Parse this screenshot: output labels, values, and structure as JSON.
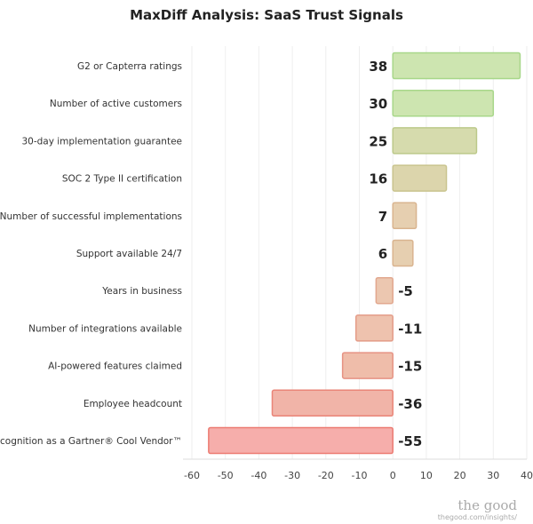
{
  "chart_data": {
    "type": "bar",
    "orientation": "horizontal",
    "title": "MaxDiff Analysis: SaaS Trust Signals",
    "xlabel": "",
    "ylabel": "",
    "xlim": [
      -60,
      40
    ],
    "xticks": [
      -60,
      -50,
      -40,
      -30,
      -20,
      -10,
      0,
      10,
      20,
      30,
      40
    ],
    "grid": true,
    "categories": [
      "G2 or Capterra ratings",
      "Number of active customers",
      "30-day implementation guarantee",
      "SOC 2 Type II certification",
      "Number of successful implementations",
      "Support available 24/7",
      "Years in business",
      "Number of integrations available",
      "AI-powered features claimed",
      "Employee headcount",
      "Recognition as a Gartner® Cool Vendor™"
    ],
    "values": [
      38,
      30,
      25,
      16,
      7,
      6,
      -5,
      -11,
      -15,
      -36,
      -55
    ],
    "fills": [
      "#cde5b0",
      "#cde5b0",
      "#d6dbad",
      "#dcd5ac",
      "#e6cfb0",
      "#e6cfb0",
      "#ecc7b0",
      "#eec2ae",
      "#efbdaa",
      "#f1b4a8",
      "#f6aeab"
    ],
    "strokes": [
      "#a8d78a",
      "#a8d78a",
      "#bcc98a",
      "#c9c48e",
      "#d9b48f",
      "#d9b48f",
      "#e2a78e",
      "#e49c88",
      "#e69384",
      "#ea8578",
      "#ec7b72"
    ]
  },
  "branding": {
    "logo": "the good",
    "url": "thegood.com/insights/"
  }
}
